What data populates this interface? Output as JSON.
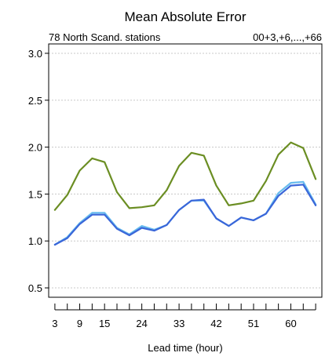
{
  "chart_data": {
    "type": "line",
    "title": "Mean Absolute Error",
    "subtitle_left": "78 North Scand. stations",
    "subtitle_right": "00+3,+6,...,+66",
    "xlabel": "Lead time (hour)",
    "ylabel": "",
    "x": [
      3,
      6,
      9,
      12,
      15,
      18,
      21,
      24,
      27,
      30,
      33,
      36,
      39,
      42,
      45,
      48,
      51,
      54,
      57,
      60,
      63,
      66
    ],
    "xticks": [
      3,
      9,
      15,
      24,
      33,
      42,
      51,
      60
    ],
    "yticks": [
      "0.5",
      "1.0",
      "1.5",
      "2.0",
      "2.5",
      "3.0"
    ],
    "ylim": [
      0.4,
      3.1
    ],
    "xlim": [
      1.5,
      67.5
    ],
    "grid": true,
    "series": [
      {
        "color": "#6b8e23",
        "values": [
          1.33,
          1.49,
          1.75,
          1.88,
          1.84,
          1.52,
          1.35,
          1.36,
          1.38,
          1.54,
          1.8,
          1.94,
          1.91,
          1.59,
          1.38,
          1.4,
          1.43,
          1.64,
          1.92,
          2.05,
          1.99,
          1.66
        ]
      },
      {
        "color": "#66bbee",
        "values": [
          0.96,
          1.04,
          1.19,
          1.3,
          1.3,
          1.14,
          1.07,
          1.16,
          1.12,
          1.17,
          1.33,
          1.43,
          1.43,
          1.24,
          1.16,
          1.25,
          1.22,
          1.29,
          1.51,
          1.62,
          1.63,
          1.39
        ]
      },
      {
        "color": "#3a66d9",
        "values": [
          0.96,
          1.03,
          1.18,
          1.28,
          1.28,
          1.13,
          1.06,
          1.14,
          1.11,
          1.17,
          1.33,
          1.43,
          1.44,
          1.24,
          1.16,
          1.25,
          1.22,
          1.29,
          1.48,
          1.59,
          1.6,
          1.38
        ]
      }
    ]
  }
}
